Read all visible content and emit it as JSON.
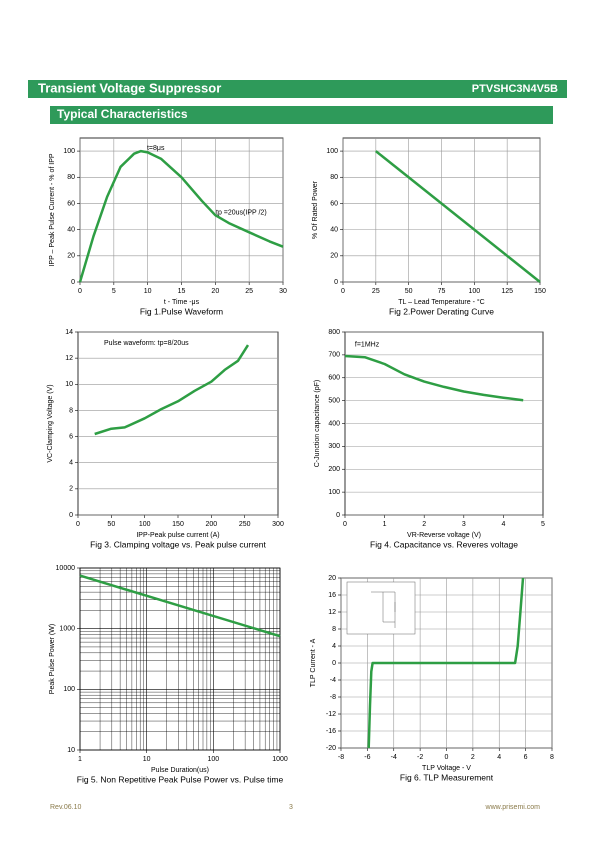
{
  "header": {
    "title": "Transient Voltage Suppressor",
    "part": "PTVSHC3N4V5B"
  },
  "section": "Typical Characteristics",
  "chart_data": [
    {
      "type": "line",
      "title": "Fig 1.Pulse Waveform",
      "x_label": "t - Time -μs",
      "y_label": "IPP – Peak Pulse Current - % of IPP",
      "annotations": [
        "t=8μs",
        "tp =20us(IPP /2)"
      ],
      "x": [
        0,
        2,
        4,
        6,
        8,
        9,
        10,
        12,
        15,
        18,
        20,
        22,
        25,
        28,
        30
      ],
      "series": [
        {
          "color": "#2e9e44",
          "values": [
            0,
            35,
            65,
            88,
            98,
            100,
            99,
            94,
            80,
            62,
            51,
            45,
            38,
            31,
            27
          ]
        }
      ],
      "xlim": [
        0,
        30
      ],
      "ylim": [
        0,
        110
      ],
      "xticks": [
        0,
        5,
        10,
        15,
        20,
        25,
        30
      ],
      "yticks": [
        0,
        20,
        40,
        60,
        80,
        100
      ],
      "grid": "both"
    },
    {
      "type": "line",
      "title": "Fig 2.Power Derating Curve",
      "x_label": "TL – Lead Temperature - °C",
      "y_label": "% Of Rated Power",
      "x": [
        25,
        150
      ],
      "series": [
        {
          "color": "#2e9e44",
          "values": [
            100,
            0
          ]
        }
      ],
      "xlim": [
        0,
        150
      ],
      "ylim": [
        0,
        110
      ],
      "xticks": [
        0,
        25,
        50,
        75,
        100,
        125,
        150
      ],
      "yticks": [
        0,
        20,
        40,
        60,
        80,
        100
      ],
      "grid": "both"
    },
    {
      "type": "line",
      "title": "Fig 3. Clamping voltage vs. Peak pulse current",
      "x_label": "IPP-Peak pulse current (A)",
      "y_label": "VC-Clamping Voltage (V)",
      "annotations": [
        "Pulse waveform: tp=8/20us"
      ],
      "x": [
        25,
        50,
        70,
        100,
        125,
        150,
        175,
        200,
        220,
        240,
        255
      ],
      "series": [
        {
          "color": "#2e9e44",
          "values": [
            6.2,
            6.6,
            6.7,
            7.4,
            8.1,
            8.7,
            9.5,
            10.2,
            11.1,
            11.8,
            13
          ]
        }
      ],
      "xlim": [
        0,
        300
      ],
      "ylim": [
        0,
        14
      ],
      "xticks": [
        0,
        50,
        100,
        150,
        200,
        250,
        300
      ],
      "yticks": [
        0,
        2,
        4,
        6,
        8,
        10,
        12,
        14
      ],
      "grid": "y"
    },
    {
      "type": "line",
      "title": "Fig 4. Capacitance vs. Reveres voltage",
      "x_label": "VR-Reverse voltage (V)",
      "y_label": "C-Junction capacitance (pF)",
      "annotations": [
        "f=1MHz"
      ],
      "x": [
        0,
        0.5,
        1,
        1.5,
        2,
        2.5,
        3,
        3.5,
        4,
        4.5
      ],
      "series": [
        {
          "color": "#2e9e44",
          "values": [
            695,
            690,
            660,
            615,
            583,
            560,
            540,
            525,
            513,
            502
          ]
        }
      ],
      "xlim": [
        0,
        5
      ],
      "ylim": [
        0,
        800
      ],
      "xticks": [
        0,
        1,
        2,
        3,
        4,
        5
      ],
      "yticks": [
        0,
        100,
        200,
        300,
        400,
        500,
        600,
        700,
        800
      ],
      "grid": "y"
    },
    {
      "type": "line",
      "title": "Fig 5. Non Repetitive Peak Pulse Power vs. Pulse time",
      "x_label": "Pulse Duration(us)",
      "y_label": "Peak Pulse Power (W)",
      "x": [
        1,
        1000
      ],
      "series": [
        {
          "color": "#2e9e44",
          "values": [
            7500,
            750
          ]
        }
      ],
      "log_x": true,
      "log_y": true,
      "xlim": [
        1,
        1000
      ],
      "ylim": [
        10,
        10000
      ],
      "xticks": [
        1,
        10,
        100,
        1000
      ],
      "yticks": [
        10,
        100,
        1000,
        10000
      ],
      "grid": "both"
    },
    {
      "type": "line",
      "title": "Fig 6. TLP Measurement",
      "x_label": "TLP Voltage - V",
      "y_label": "TLP Current - A",
      "x": [
        -5.9,
        -5.8,
        -5.7,
        -5.6,
        5.2,
        5.4,
        5.6,
        5.8
      ],
      "series": [
        {
          "color": "#2e9e44",
          "values": [
            -20,
            -10,
            -2,
            0,
            0,
            4,
            12,
            20
          ]
        }
      ],
      "xlim": [
        -8,
        8
      ],
      "ylim": [
        -20,
        20
      ],
      "xticks": [
        -8,
        -6,
        -4,
        -2,
        0,
        2,
        4,
        6,
        8
      ],
      "yticks": [
        -20,
        -16,
        -12,
        -8,
        -4,
        0,
        4,
        8,
        12,
        16,
        20
      ],
      "grid": "both"
    }
  ],
  "footer": {
    "revision": "Rev.06.10",
    "page": "3",
    "website": "www.prisemi.com"
  }
}
